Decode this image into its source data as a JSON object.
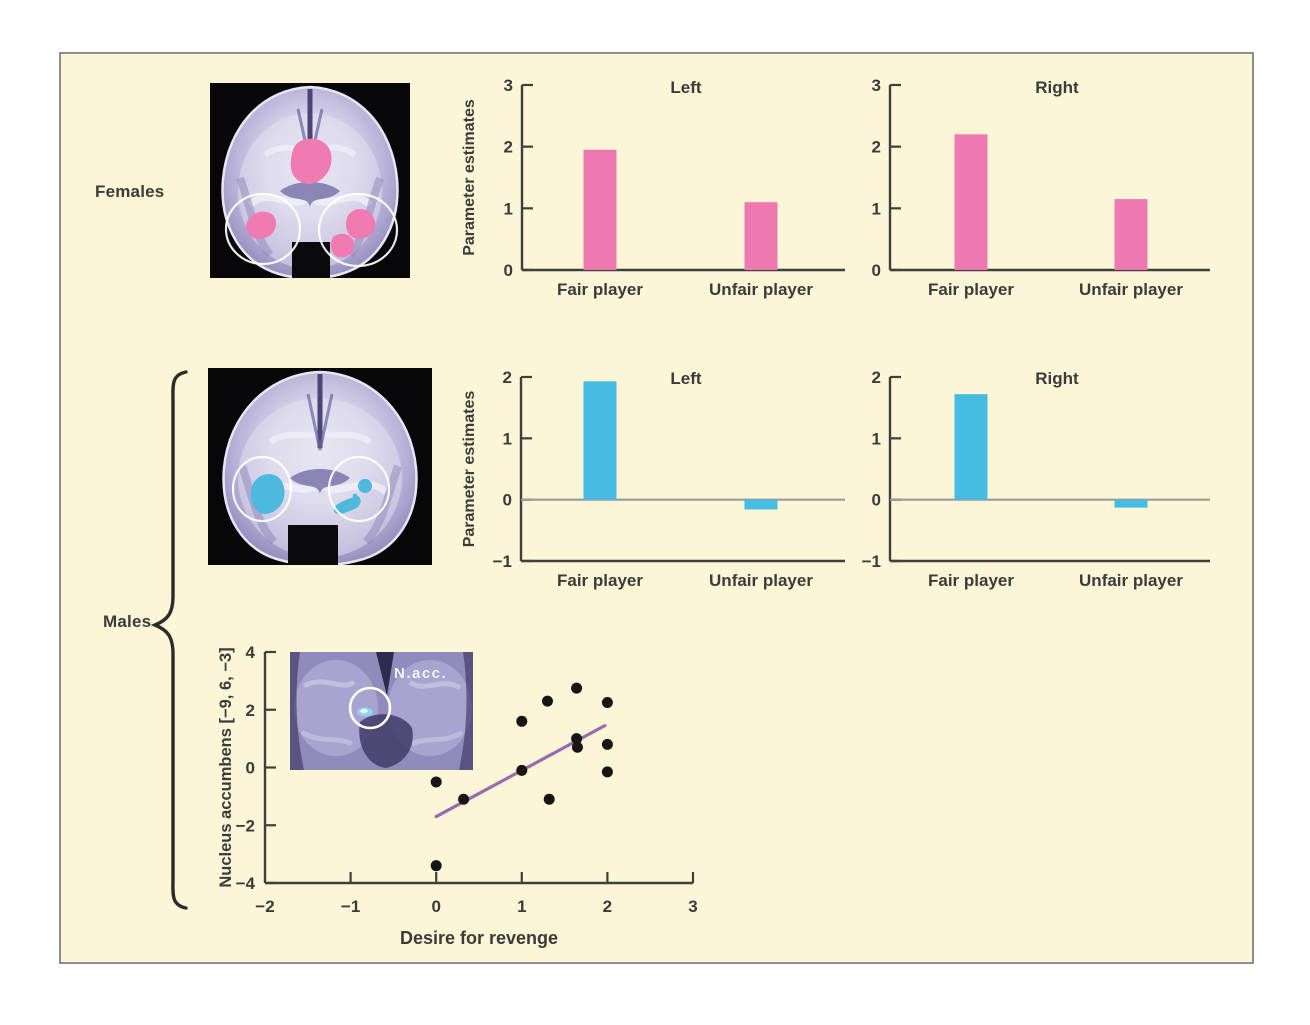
{
  "labels": {
    "females": "Females",
    "males": "Males",
    "nacc": "N.acc."
  },
  "colors": {
    "panel_bg": "#faf6d6",
    "panel_border": "#8d8d8d",
    "female_bar": "#ee79b1",
    "male_bar": "#47bce2",
    "fit_line": "#9c69ae",
    "scatter_point": "#161616",
    "axis": "#3f3f3f",
    "zero_line": "#9b9b9b",
    "text": "#3b3b3b"
  },
  "chart_data": [
    {
      "id": "females-left",
      "type": "bar",
      "group": "Females",
      "title": "Left",
      "ylabel": "Parameter estimates",
      "categories": [
        "Fair player",
        "Unfair player"
      ],
      "values": [
        1.95,
        1.1
      ],
      "ylim": [
        0,
        3
      ],
      "yticks": [
        0,
        1,
        2,
        3
      ],
      "bar_color_key": "female_bar"
    },
    {
      "id": "females-right",
      "type": "bar",
      "group": "Females",
      "title": "Right",
      "ylabel": "",
      "categories": [
        "Fair player",
        "Unfair player"
      ],
      "values": [
        2.2,
        1.15
      ],
      "ylim": [
        0,
        3
      ],
      "yticks": [
        0,
        1,
        2,
        3
      ],
      "bar_color_key": "female_bar"
    },
    {
      "id": "males-left",
      "type": "bar",
      "group": "Males",
      "title": "Left",
      "ylabel": "Parameter estimates",
      "categories": [
        "Fair player",
        "Unfair player"
      ],
      "values": [
        1.93,
        -0.16
      ],
      "ylim": [
        -1,
        2
      ],
      "yticks": [
        -1,
        0,
        1,
        2
      ],
      "zero_line": true,
      "bar_color_key": "male_bar"
    },
    {
      "id": "males-right",
      "type": "bar",
      "group": "Males",
      "title": "Right",
      "ylabel": "",
      "categories": [
        "Fair player",
        "Unfair player"
      ],
      "values": [
        1.72,
        -0.13
      ],
      "ylim": [
        -1,
        2
      ],
      "yticks": [
        -1,
        0,
        1,
        2
      ],
      "zero_line": true,
      "bar_color_key": "male_bar"
    },
    {
      "id": "revenge-scatter",
      "type": "scatter",
      "group": "Males",
      "xlabel": "Desire for revenge",
      "ylabel": "Nucleus accumbens [−9, 6, −3]",
      "xlim": [
        -2,
        3
      ],
      "ylim": [
        -4,
        4
      ],
      "xticks": [
        -2,
        -1,
        0,
        1,
        2,
        3
      ],
      "yticks": [
        -4,
        -2,
        0,
        2,
        4
      ],
      "points": [
        [
          0,
          -0.5
        ],
        [
          0,
          -3.4
        ],
        [
          0.32,
          -1.1
        ],
        [
          1,
          1.6
        ],
        [
          1,
          -0.1
        ],
        [
          1.3,
          2.3
        ],
        [
          1.32,
          -1.1
        ],
        [
          1.64,
          2.75
        ],
        [
          1.64,
          1.0
        ],
        [
          1.65,
          0.7
        ],
        [
          2,
          2.25
        ],
        [
          2,
          0.8
        ],
        [
          2,
          -0.15
        ]
      ],
      "fit_line": {
        "x1": 0,
        "y1": -1.7,
        "x2": 1.97,
        "y2": 1.45
      }
    }
  ]
}
